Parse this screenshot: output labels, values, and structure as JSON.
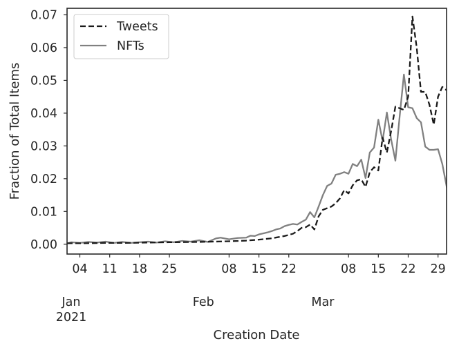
{
  "chart_data": {
    "type": "line",
    "title": "",
    "xlabel": "Creation Date",
    "ylabel": "Fraction of Total Items",
    "x_start": "2021-01-01",
    "x_end": "2021-03-31",
    "ylim": [
      -0.003,
      0.072
    ],
    "yticks": [
      "0.00",
      "0.01",
      "0.02",
      "0.03",
      "0.04",
      "0.05",
      "0.06",
      "0.07"
    ],
    "x_day_ticks": [
      {
        "date": "2021-01-04",
        "label": "04"
      },
      {
        "date": "2021-01-11",
        "label": "11"
      },
      {
        "date": "2021-01-18",
        "label": "18"
      },
      {
        "date": "2021-01-25",
        "label": "25"
      },
      {
        "date": "2021-02-08",
        "label": "08"
      },
      {
        "date": "2021-02-15",
        "label": "15"
      },
      {
        "date": "2021-02-22",
        "label": "22"
      },
      {
        "date": "2021-03-08",
        "label": "08"
      },
      {
        "date": "2021-03-15",
        "label": "15"
      },
      {
        "date": "2021-03-22",
        "label": "22"
      },
      {
        "date": "2021-03-29",
        "label": "29"
      }
    ],
    "x_month_ticks": [
      {
        "date": "2021-01-01",
        "label": "Jan",
        "year": "2021"
      },
      {
        "date": "2021-02-01",
        "label": "Feb",
        "year": ""
      },
      {
        "date": "2021-03-01",
        "label": "Mar",
        "year": ""
      }
    ],
    "grid": false,
    "legend_position": "top-left",
    "series": [
      {
        "name": "Tweets",
        "color": "#1a1a1a",
        "style": "dashed",
        "points": [
          [
            "2021-01-01",
            0.0003
          ],
          [
            "2021-01-05",
            0.0003
          ],
          [
            "2021-01-10",
            0.0004
          ],
          [
            "2021-01-15",
            0.0004
          ],
          [
            "2021-01-20",
            0.0005
          ],
          [
            "2021-01-25",
            0.0006
          ],
          [
            "2021-02-01",
            0.0007
          ],
          [
            "2021-02-05",
            0.0008
          ],
          [
            "2021-02-08",
            0.0009
          ],
          [
            "2021-02-12",
            0.0011
          ],
          [
            "2021-02-15",
            0.0014
          ],
          [
            "2021-02-18",
            0.0018
          ],
          [
            "2021-02-21",
            0.0025
          ],
          [
            "2021-02-23",
            0.0032
          ],
          [
            "2021-02-24",
            0.004
          ],
          [
            "2021-02-25",
            0.005
          ],
          [
            "2021-02-26",
            0.0052
          ],
          [
            "2021-02-27",
            0.006
          ],
          [
            "2021-02-28",
            0.0045
          ],
          [
            "2021-03-01",
            0.0085
          ],
          [
            "2021-03-02",
            0.0105
          ],
          [
            "2021-03-03",
            0.011
          ],
          [
            "2021-03-04",
            0.0115
          ],
          [
            "2021-03-05",
            0.0125
          ],
          [
            "2021-03-06",
            0.014
          ],
          [
            "2021-03-07",
            0.0165
          ],
          [
            "2021-03-08",
            0.0155
          ],
          [
            "2021-03-09",
            0.018
          ],
          [
            "2021-03-10",
            0.0195
          ],
          [
            "2021-03-11",
            0.0198
          ],
          [
            "2021-03-12",
            0.0175
          ],
          [
            "2021-03-13",
            0.022
          ],
          [
            "2021-03-14",
            0.0235
          ],
          [
            "2021-03-15",
            0.0225
          ],
          [
            "2021-03-16",
            0.0325
          ],
          [
            "2021-03-17",
            0.028
          ],
          [
            "2021-03-18",
            0.0345
          ],
          [
            "2021-03-19",
            0.042
          ],
          [
            "2021-03-20",
            0.0415
          ],
          [
            "2021-03-21",
            0.041
          ],
          [
            "2021-03-22",
            0.045
          ],
          [
            "2021-03-23",
            0.0695
          ],
          [
            "2021-03-24",
            0.06
          ],
          [
            "2021-03-25",
            0.0465
          ],
          [
            "2021-03-26",
            0.0465
          ],
          [
            "2021-03-27",
            0.0425
          ],
          [
            "2021-03-28",
            0.0365
          ],
          [
            "2021-03-29",
            0.045
          ],
          [
            "2021-03-30",
            0.048
          ],
          [
            "2021-03-31",
            0.047
          ],
          [
            "2021-04-01",
            0.0455
          ]
        ]
      },
      {
        "name": "NFTs",
        "color": "#808080",
        "style": "solid",
        "points": [
          [
            "2021-01-01",
            0.0002
          ],
          [
            "2021-01-02",
            0.0006
          ],
          [
            "2021-01-04",
            0.0004
          ],
          [
            "2021-01-06",
            0.0007
          ],
          [
            "2021-01-08",
            0.0005
          ],
          [
            "2021-01-10",
            0.0008
          ],
          [
            "2021-01-12",
            0.0004
          ],
          [
            "2021-01-14",
            0.0007
          ],
          [
            "2021-01-16",
            0.0004
          ],
          [
            "2021-01-18",
            0.0006
          ],
          [
            "2021-01-20",
            0.0008
          ],
          [
            "2021-01-22",
            0.0005
          ],
          [
            "2021-01-24",
            0.0009
          ],
          [
            "2021-01-26",
            0.0006
          ],
          [
            "2021-01-28",
            0.001
          ],
          [
            "2021-01-30",
            0.0008
          ],
          [
            "2021-02-01",
            0.0012
          ],
          [
            "2021-02-03",
            0.0007
          ],
          [
            "2021-02-05",
            0.0018
          ],
          [
            "2021-02-06",
            0.002
          ],
          [
            "2021-02-08",
            0.0015
          ],
          [
            "2021-02-10",
            0.0019
          ],
          [
            "2021-02-12",
            0.002
          ],
          [
            "2021-02-13",
            0.0026
          ],
          [
            "2021-02-14",
            0.0025
          ],
          [
            "2021-02-15",
            0.003
          ],
          [
            "2021-02-17",
            0.0036
          ],
          [
            "2021-02-18",
            0.004
          ],
          [
            "2021-02-19",
            0.0045
          ],
          [
            "2021-02-20",
            0.0048
          ],
          [
            "2021-02-21",
            0.0055
          ],
          [
            "2021-02-22",
            0.0059
          ],
          [
            "2021-02-23",
            0.0062
          ],
          [
            "2021-02-24",
            0.006
          ],
          [
            "2021-02-25",
            0.0068
          ],
          [
            "2021-02-26",
            0.0075
          ],
          [
            "2021-02-27",
            0.0098
          ],
          [
            "2021-02-28",
            0.0082
          ],
          [
            "2021-03-01",
            0.0115
          ],
          [
            "2021-03-02",
            0.015
          ],
          [
            "2021-03-03",
            0.0178
          ],
          [
            "2021-03-04",
            0.0185
          ],
          [
            "2021-03-05",
            0.0212
          ],
          [
            "2021-03-06",
            0.0215
          ],
          [
            "2021-03-07",
            0.022
          ],
          [
            "2021-03-08",
            0.0215
          ],
          [
            "2021-03-09",
            0.0245
          ],
          [
            "2021-03-10",
            0.0238
          ],
          [
            "2021-03-11",
            0.0258
          ],
          [
            "2021-03-12",
            0.0202
          ],
          [
            "2021-03-13",
            0.028
          ],
          [
            "2021-03-14",
            0.0295
          ],
          [
            "2021-03-15",
            0.038
          ],
          [
            "2021-03-16",
            0.0315
          ],
          [
            "2021-03-17",
            0.0402
          ],
          [
            "2021-03-18",
            0.032
          ],
          [
            "2021-03-19",
            0.0255
          ],
          [
            "2021-03-20",
            0.039
          ],
          [
            "2021-03-21",
            0.0518
          ],
          [
            "2021-03-22",
            0.0418
          ],
          [
            "2021-03-23",
            0.0415
          ],
          [
            "2021-03-24",
            0.0385
          ],
          [
            "2021-03-25",
            0.0372
          ],
          [
            "2021-03-26",
            0.0298
          ],
          [
            "2021-03-27",
            0.0288
          ],
          [
            "2021-03-28",
            0.0288
          ],
          [
            "2021-03-29",
            0.029
          ],
          [
            "2021-03-30",
            0.0245
          ],
          [
            "2021-04-01",
            0.011
          ]
        ]
      }
    ]
  }
}
